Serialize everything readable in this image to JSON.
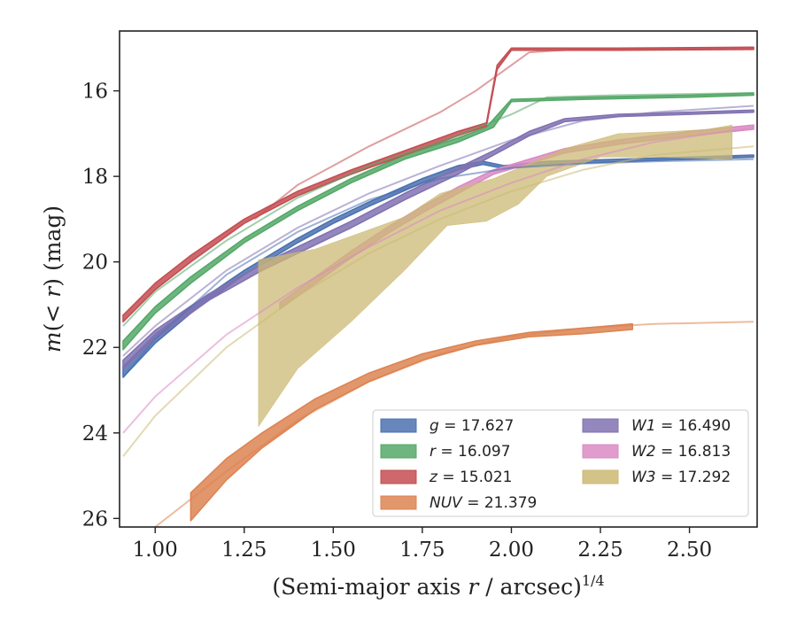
{
  "chart_data": {
    "type": "line",
    "xlabel": "(Semi-major axis r / arcsec)^1/4",
    "ylabel": "m(< r) (mag)",
    "xlim": [
      0.9,
      2.69
    ],
    "ylim": [
      26.2,
      14.6
    ],
    "y_inverted": true,
    "grid": false,
    "legend_placement": "lower right",
    "xticks": [
      1.0,
      1.25,
      1.5,
      1.75,
      2.0,
      2.25,
      2.5
    ],
    "xtick_labels": [
      "1.00",
      "1.25",
      "1.50",
      "1.75",
      "2.00",
      "2.25",
      "2.50"
    ],
    "yticks": [
      16,
      18,
      20,
      22,
      24,
      26
    ],
    "ytick_labels": [
      "16",
      "18",
      "20",
      "22",
      "24",
      "26"
    ],
    "series": [
      {
        "name": "g = 17.627",
        "legend_var": "g",
        "legend_val": "= 17.627",
        "color": "#4c72b0",
        "band_lower": [
          [
            0.91,
            22.45
          ],
          [
            1.0,
            21.7
          ],
          [
            1.1,
            21.05
          ],
          [
            1.25,
            20.2
          ],
          [
            1.4,
            19.45
          ],
          [
            1.5,
            19.0
          ],
          [
            1.6,
            18.6
          ],
          [
            1.75,
            18.05
          ],
          [
            1.85,
            17.75
          ],
          [
            1.92,
            17.65
          ],
          [
            1.98,
            17.75
          ],
          [
            2.1,
            17.65
          ],
          [
            2.3,
            17.6
          ],
          [
            2.5,
            17.55
          ],
          [
            2.68,
            17.5
          ]
        ],
        "band_upper": [
          [
            0.91,
            22.7
          ],
          [
            1.0,
            21.9
          ],
          [
            1.1,
            21.2
          ],
          [
            1.25,
            20.3
          ],
          [
            1.4,
            19.55
          ],
          [
            1.5,
            19.1
          ],
          [
            1.6,
            18.7
          ],
          [
            1.75,
            18.15
          ],
          [
            1.85,
            17.85
          ],
          [
            1.92,
            17.72
          ],
          [
            1.98,
            17.82
          ],
          [
            2.1,
            17.72
          ],
          [
            2.3,
            17.66
          ],
          [
            2.5,
            17.6
          ],
          [
            2.68,
            17.55
          ]
        ],
        "model": [
          [
            0.91,
            22.7
          ],
          [
            1.0,
            21.8
          ],
          [
            1.2,
            20.3
          ],
          [
            1.4,
            19.3
          ],
          [
            1.6,
            18.55
          ],
          [
            1.8,
            18.05
          ],
          [
            2.0,
            17.8
          ],
          [
            2.2,
            17.7
          ],
          [
            2.4,
            17.65
          ],
          [
            2.68,
            17.6
          ]
        ]
      },
      {
        "name": "r = 16.097",
        "legend_var": "r",
        "legend_val": "= 16.097",
        "color": "#55a868",
        "band_lower": [
          [
            0.91,
            21.85
          ],
          [
            1.0,
            21.05
          ],
          [
            1.1,
            20.35
          ],
          [
            1.25,
            19.45
          ],
          [
            1.4,
            18.7
          ],
          [
            1.55,
            18.05
          ],
          [
            1.7,
            17.5
          ],
          [
            1.85,
            17.1
          ],
          [
            1.93,
            16.85
          ],
          [
            2.0,
            16.2
          ],
          [
            2.2,
            16.15
          ],
          [
            2.5,
            16.1
          ],
          [
            2.68,
            16.05
          ]
        ],
        "band_upper": [
          [
            0.91,
            22.05
          ],
          [
            1.0,
            21.2
          ],
          [
            1.1,
            20.5
          ],
          [
            1.25,
            19.55
          ],
          [
            1.4,
            18.8
          ],
          [
            1.55,
            18.15
          ],
          [
            1.7,
            17.6
          ],
          [
            1.85,
            17.2
          ],
          [
            1.95,
            16.85
          ],
          [
            2.0,
            16.25
          ],
          [
            2.2,
            16.2
          ],
          [
            2.5,
            16.15
          ],
          [
            2.68,
            16.1
          ]
        ],
        "model": [
          [
            0.91,
            21.5
          ],
          [
            1.0,
            20.7
          ],
          [
            1.2,
            19.5
          ],
          [
            1.4,
            18.5
          ],
          [
            1.6,
            17.75
          ],
          [
            1.8,
            17.2
          ],
          [
            2.0,
            16.55
          ],
          [
            2.1,
            16.15
          ],
          [
            2.3,
            16.1
          ],
          [
            2.68,
            16.05
          ]
        ]
      },
      {
        "name": "z = 15.021",
        "legend_var": "z",
        "legend_val": "= 15.021",
        "color": "#c44e52",
        "band_lower": [
          [
            0.91,
            21.25
          ],
          [
            1.0,
            20.5
          ],
          [
            1.1,
            19.85
          ],
          [
            1.25,
            19.0
          ],
          [
            1.4,
            18.35
          ],
          [
            1.55,
            17.85
          ],
          [
            1.7,
            17.4
          ],
          [
            1.85,
            16.95
          ],
          [
            1.93,
            16.75
          ],
          [
            1.96,
            15.4
          ],
          [
            2.0,
            15.0
          ],
          [
            2.3,
            15.0
          ],
          [
            2.68,
            14.98
          ]
        ],
        "band_upper": [
          [
            0.91,
            21.4
          ],
          [
            1.0,
            20.65
          ],
          [
            1.1,
            20.0
          ],
          [
            1.25,
            19.1
          ],
          [
            1.4,
            18.45
          ],
          [
            1.55,
            17.95
          ],
          [
            1.7,
            17.5
          ],
          [
            1.85,
            17.05
          ],
          [
            1.93,
            16.82
          ],
          [
            1.96,
            15.5
          ],
          [
            2.0,
            15.05
          ],
          [
            2.3,
            15.05
          ],
          [
            2.68,
            15.03
          ]
        ],
        "model": [
          [
            1.28,
            19.0
          ],
          [
            1.4,
            18.2
          ],
          [
            1.6,
            17.3
          ],
          [
            1.8,
            16.5
          ],
          [
            1.9,
            16.0
          ],
          [
            2.0,
            15.4
          ],
          [
            2.05,
            15.1
          ],
          [
            2.2,
            15.02
          ],
          [
            2.68,
            15.0
          ]
        ]
      },
      {
        "name": "NUV = 21.379",
        "legend_var": "NUV",
        "legend_val": "= 21.379",
        "color": "#dd8452",
        "band_lower": [
          [
            1.1,
            25.4
          ],
          [
            1.2,
            24.6
          ],
          [
            1.3,
            24.0
          ],
          [
            1.45,
            23.2
          ],
          [
            1.6,
            22.6
          ],
          [
            1.75,
            22.15
          ],
          [
            1.9,
            21.85
          ],
          [
            2.05,
            21.65
          ],
          [
            2.2,
            21.55
          ],
          [
            2.34,
            21.45
          ]
        ],
        "band_upper": [
          [
            1.1,
            26.05
          ],
          [
            1.2,
            25.1
          ],
          [
            1.3,
            24.35
          ],
          [
            1.45,
            23.45
          ],
          [
            1.6,
            22.8
          ],
          [
            1.75,
            22.3
          ],
          [
            1.9,
            21.95
          ],
          [
            2.05,
            21.75
          ],
          [
            2.2,
            21.68
          ],
          [
            2.34,
            21.58
          ]
        ],
        "model": [
          [
            1.0,
            26.3
          ],
          [
            1.2,
            24.9
          ],
          [
            1.4,
            23.7
          ],
          [
            1.6,
            22.8
          ],
          [
            1.8,
            22.15
          ],
          [
            2.0,
            21.75
          ],
          [
            2.2,
            21.55
          ],
          [
            2.4,
            21.45
          ],
          [
            2.68,
            21.4
          ]
        ]
      },
      {
        "name": "W1 = 16.490",
        "legend_var": "W1",
        "legend_val": "= 16.490",
        "color": "#8172b2",
        "band_lower": [
          [
            0.91,
            22.3
          ],
          [
            1.0,
            21.6
          ],
          [
            1.15,
            20.75
          ],
          [
            1.3,
            20.05
          ],
          [
            1.45,
            19.45
          ],
          [
            1.55,
            19.05
          ],
          [
            1.7,
            18.4
          ],
          [
            1.85,
            17.8
          ],
          [
            1.95,
            17.4
          ],
          [
            2.05,
            16.95
          ],
          [
            2.15,
            16.65
          ],
          [
            2.3,
            16.55
          ],
          [
            2.5,
            16.5
          ],
          [
            2.68,
            16.45
          ]
        ],
        "band_upper": [
          [
            0.91,
            22.5
          ],
          [
            1.0,
            21.8
          ],
          [
            1.15,
            20.9
          ],
          [
            1.3,
            20.2
          ],
          [
            1.45,
            19.6
          ],
          [
            1.55,
            19.2
          ],
          [
            1.7,
            18.55
          ],
          [
            1.85,
            17.95
          ],
          [
            1.95,
            17.5
          ],
          [
            2.05,
            17.05
          ],
          [
            2.15,
            16.72
          ],
          [
            2.3,
            16.6
          ],
          [
            2.5,
            16.55
          ],
          [
            2.68,
            16.5
          ]
        ],
        "model": [
          [
            0.91,
            22.2
          ],
          [
            1.0,
            21.5
          ],
          [
            1.2,
            20.2
          ],
          [
            1.4,
            19.2
          ],
          [
            1.6,
            18.4
          ],
          [
            1.8,
            17.75
          ],
          [
            2.0,
            17.15
          ],
          [
            2.2,
            16.7
          ],
          [
            2.4,
            16.5
          ],
          [
            2.68,
            16.35
          ]
        ]
      },
      {
        "name": "W2 = 16.813",
        "legend_var": "W2",
        "legend_val": "= 16.813",
        "color": "#da8bc3",
        "band_lower": [
          [
            1.35,
            20.95
          ],
          [
            1.45,
            20.35
          ],
          [
            1.55,
            19.75
          ],
          [
            1.65,
            19.2
          ],
          [
            1.75,
            18.7
          ],
          [
            1.85,
            18.25
          ],
          [
            1.95,
            17.85
          ],
          [
            2.05,
            17.6
          ],
          [
            2.15,
            17.35
          ],
          [
            2.3,
            17.15
          ],
          [
            2.5,
            16.95
          ],
          [
            2.68,
            16.8
          ]
        ],
        "band_upper": [
          [
            1.35,
            21.1
          ],
          [
            1.45,
            20.5
          ],
          [
            1.55,
            19.9
          ],
          [
            1.65,
            19.35
          ],
          [
            1.75,
            18.85
          ],
          [
            1.85,
            18.4
          ],
          [
            1.95,
            17.95
          ],
          [
            2.05,
            17.7
          ],
          [
            2.15,
            17.45
          ],
          [
            2.3,
            17.25
          ],
          [
            2.5,
            17.05
          ],
          [
            2.68,
            16.9
          ]
        ],
        "model": [
          [
            0.91,
            24.0
          ],
          [
            1.0,
            23.15
          ],
          [
            1.2,
            21.7
          ],
          [
            1.4,
            20.6
          ],
          [
            1.6,
            19.65
          ],
          [
            1.8,
            18.8
          ],
          [
            2.0,
            18.15
          ],
          [
            2.2,
            17.6
          ],
          [
            2.4,
            17.2
          ],
          [
            2.68,
            16.85
          ]
        ]
      },
      {
        "name": "W3 = 17.292",
        "legend_var": "W3",
        "legend_val": "= 17.292",
        "color": "#ccb974",
        "band_lower": [
          [
            1.29,
            23.85
          ],
          [
            1.4,
            22.5
          ],
          [
            1.55,
            21.4
          ],
          [
            1.7,
            20.2
          ],
          [
            1.82,
            19.15
          ],
          [
            1.93,
            19.05
          ],
          [
            2.02,
            18.65
          ],
          [
            2.1,
            18.0
          ],
          [
            2.25,
            17.55
          ],
          [
            2.42,
            17.55
          ],
          [
            2.62,
            17.6
          ]
        ],
        "band_upper": [
          [
            1.29,
            19.95
          ],
          [
            1.45,
            19.7
          ],
          [
            1.55,
            19.4
          ],
          [
            1.7,
            18.95
          ],
          [
            1.8,
            18.4
          ],
          [
            1.95,
            18.05
          ],
          [
            2.05,
            17.7
          ],
          [
            2.15,
            17.35
          ],
          [
            2.3,
            17.0
          ],
          [
            2.45,
            16.95
          ],
          [
            2.55,
            16.9
          ],
          [
            2.62,
            16.8
          ]
        ],
        "model": [
          [
            0.91,
            24.55
          ],
          [
            1.0,
            23.6
          ],
          [
            1.2,
            22.0
          ],
          [
            1.4,
            20.8
          ],
          [
            1.6,
            19.8
          ],
          [
            1.8,
            19.0
          ],
          [
            2.0,
            18.35
          ],
          [
            2.2,
            17.85
          ],
          [
            2.4,
            17.5
          ],
          [
            2.68,
            17.3
          ]
        ]
      }
    ]
  }
}
